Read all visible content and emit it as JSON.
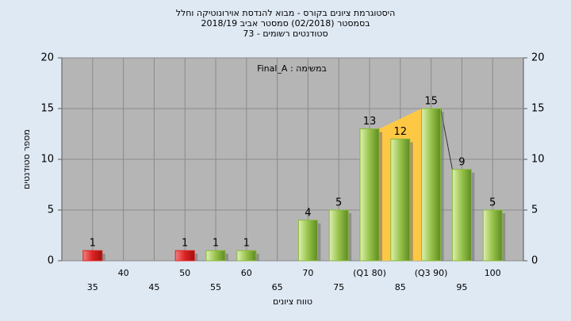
{
  "chart_data": {
    "type": "bar",
    "title": [
      "היסטוגרמת ציונים בקורס - מבוא להנדסת אוירונוטיקה וחלל",
      "בסמסטר  (02/2018)  סמסטר אביב 2018/19",
      "סטודנטים רשומים - 73"
    ],
    "annotation": "במשימה : Final_A",
    "x_label": "טווח ציונים",
    "y_label": "מספר סטודנטים",
    "categories": [
      "35",
      "40",
      "45",
      "50",
      "55",
      "60",
      "65",
      "70",
      "75",
      "(Q1 80)",
      "85",
      "(Q3 90)",
      "95",
      "100"
    ],
    "values": [
      1,
      0,
      0,
      1,
      1,
      1,
      0,
      4,
      5,
      13,
      12,
      15,
      9,
      5
    ],
    "colors": [
      "#dd2222",
      "#88b83a",
      "#88b83a",
      "#dd2222",
      "#88b83a",
      "#88b83a",
      "#88b83a",
      "#88b83a",
      "#88b83a",
      "#88b83a",
      "#88b83a",
      "#88b83a",
      "#88b83a",
      "#88b83a"
    ],
    "ylim": [
      0,
      20
    ],
    "yticks": [
      0,
      5,
      10,
      15,
      20
    ],
    "grid": true
  }
}
